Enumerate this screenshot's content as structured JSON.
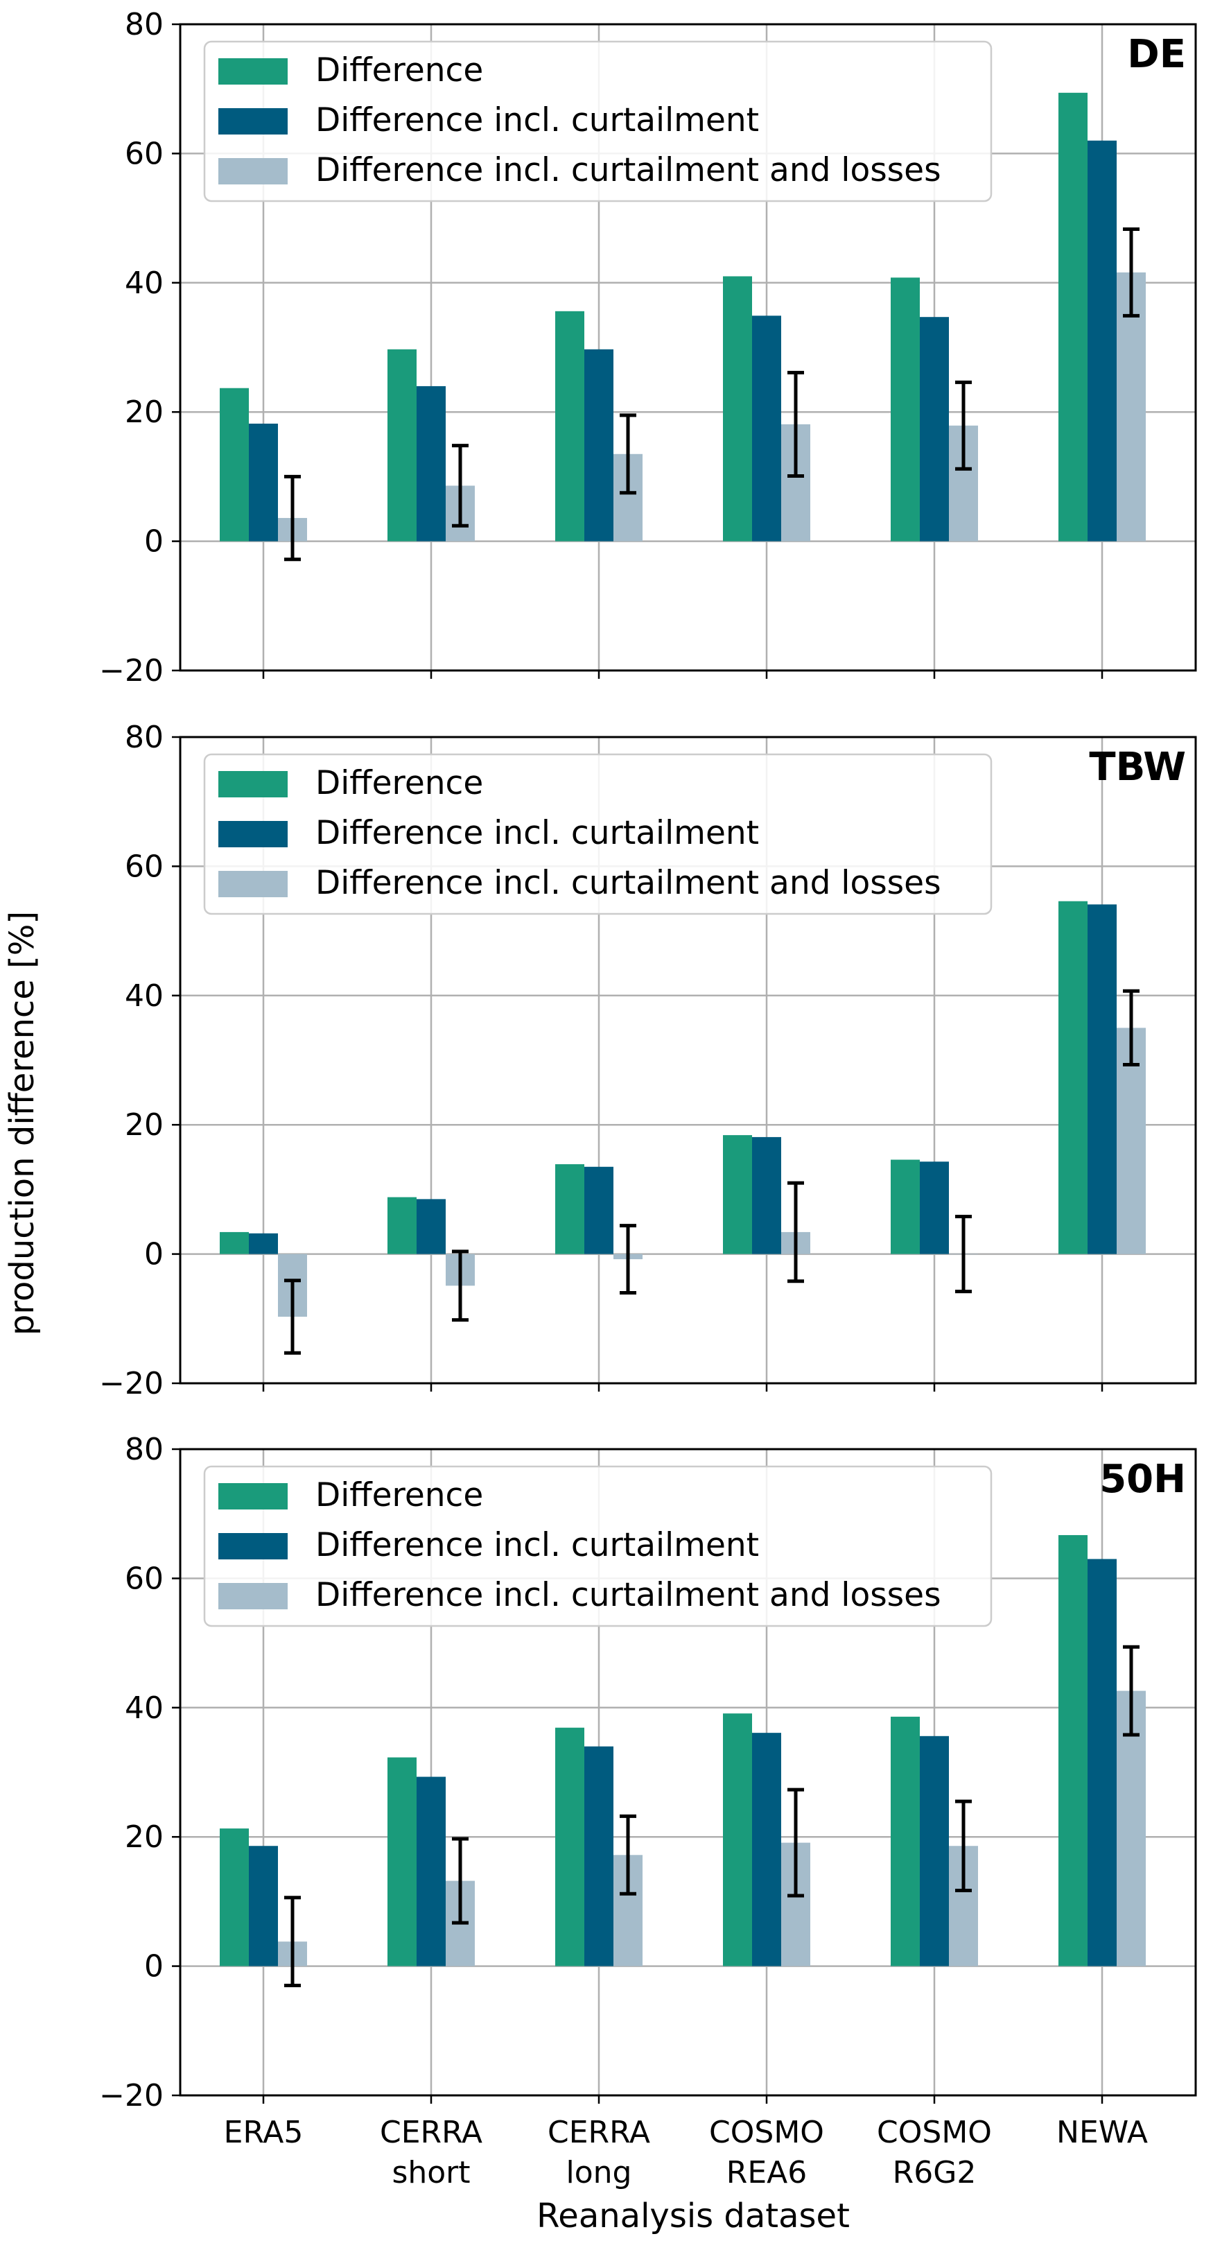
{
  "chart_data": [
    {
      "type": "bar",
      "panel_label": "DE",
      "categories": [
        "ERA5",
        "CERRA short",
        "CERRA long",
        "COSMO REA6",
        "COSMO R6G2",
        "NEWA"
      ],
      "series": [
        {
          "name": "Difference",
          "values": [
            23.7,
            29.7,
            35.6,
            41.0,
            40.8,
            69.4
          ]
        },
        {
          "name": "Difference incl. curtailment",
          "values": [
            18.2,
            24.0,
            29.7,
            34.9,
            34.7,
            62.0
          ]
        },
        {
          "name": "Difference incl. curtailment and losses",
          "values": [
            3.6,
            8.6,
            13.5,
            18.1,
            17.9,
            41.6
          ],
          "error": [
            6.4,
            6.2,
            6.0,
            8.0,
            6.7,
            6.7
          ]
        }
      ],
      "ylim": [
        -20,
        80
      ],
      "yticks": [
        -20,
        0,
        20,
        40,
        60,
        80
      ],
      "grid": true,
      "legend_position": "top-left"
    },
    {
      "type": "bar",
      "panel_label": "TBW",
      "categories": [
        "ERA5",
        "CERRA short",
        "CERRA long",
        "COSMO REA6",
        "COSMO R6G2",
        "NEWA"
      ],
      "series": [
        {
          "name": "Difference",
          "values": [
            3.4,
            8.8,
            13.9,
            18.4,
            14.6,
            54.6
          ]
        },
        {
          "name": "Difference incl. curtailment",
          "values": [
            3.2,
            8.5,
            13.5,
            18.1,
            14.3,
            54.1
          ]
        },
        {
          "name": "Difference incl. curtailment and losses",
          "values": [
            -9.7,
            -4.9,
            -0.8,
            3.4,
            -0.0,
            35.0
          ],
          "error": [
            5.6,
            5.3,
            5.2,
            7.6,
            5.8,
            5.7
          ]
        }
      ],
      "ylim": [
        -20,
        80
      ],
      "yticks": [
        -20,
        0,
        20,
        40,
        60,
        80
      ],
      "grid": true,
      "legend_position": "top-left"
    },
    {
      "type": "bar",
      "panel_label": "50H",
      "categories": [
        "ERA5",
        "CERRA short",
        "CERRA long",
        "COSMO REA6",
        "COSMO R6G2",
        "NEWA"
      ],
      "series": [
        {
          "name": "Difference",
          "values": [
            21.3,
            32.3,
            36.9,
            39.1,
            38.6,
            66.7
          ]
        },
        {
          "name": "Difference incl. curtailment",
          "values": [
            18.6,
            29.3,
            34.0,
            36.1,
            35.6,
            63.0
          ]
        },
        {
          "name": "Difference incl. curtailment and losses",
          "values": [
            3.8,
            13.2,
            17.2,
            19.1,
            18.6,
            42.6
          ],
          "error": [
            6.8,
            6.5,
            6.0,
            8.2,
            6.9,
            6.8
          ]
        }
      ],
      "ylim": [
        -20,
        80
      ],
      "yticks": [
        -20,
        0,
        20,
        40,
        60,
        80
      ],
      "grid": true,
      "legend_position": "top-left"
    }
  ],
  "labels": {
    "xlabel": "Reanalysis dataset",
    "ylabel": "production difference [%]",
    "category_lines": [
      [
        "ERA5"
      ],
      [
        "CERRA",
        "short"
      ],
      [
        "CERRA",
        "long"
      ],
      [
        "COSMO",
        "REA6"
      ],
      [
        "COSMO",
        "R6G2"
      ],
      [
        "NEWA"
      ]
    ]
  },
  "colors": {
    "series": [
      "#1a9b7b",
      "#005b7f",
      "#a5bccb"
    ],
    "grid": "#b0b0b0",
    "axis": "#000000",
    "error_bar": "#000000"
  }
}
